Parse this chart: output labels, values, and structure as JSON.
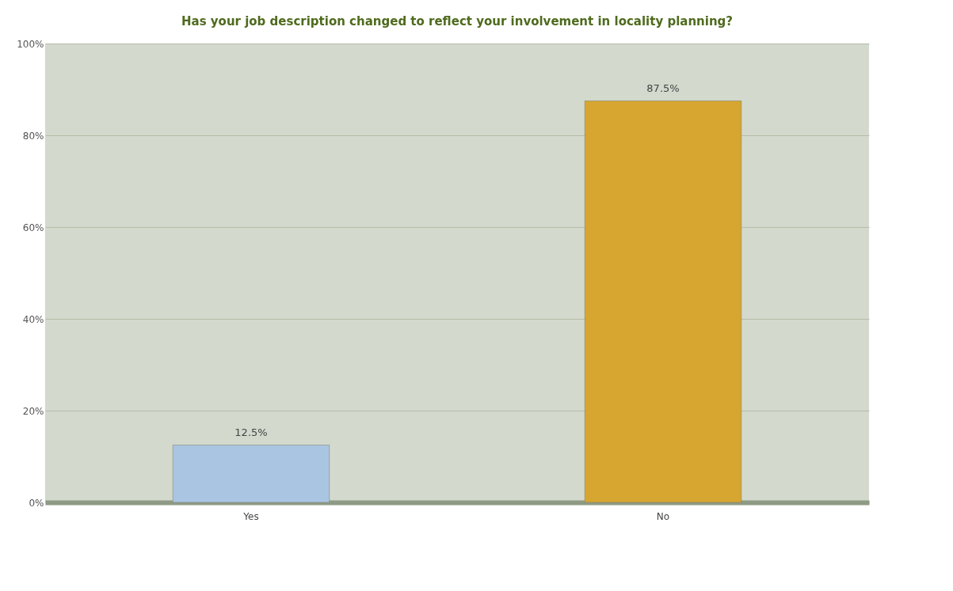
{
  "chart_data": {
    "type": "bar",
    "title": "Has your job description changed to reflect your involvement in locality planning?",
    "categories": [
      "Yes",
      "No"
    ],
    "values": [
      12.5,
      87.5
    ],
    "colors": [
      "#a9c5e2",
      "#d6a631"
    ],
    "value_labels": [
      "12.5%",
      "87.5%"
    ],
    "ylim": [
      0,
      100
    ],
    "yticks": [
      {
        "value": 0,
        "label": "0%"
      },
      {
        "value": 20,
        "label": "20%"
      },
      {
        "value": 40,
        "label": "40%"
      },
      {
        "value": 60,
        "label": "60%"
      },
      {
        "value": 80,
        "label": "80%"
      },
      {
        "value": 100,
        "label": "100%"
      }
    ],
    "grid": "y"
  }
}
